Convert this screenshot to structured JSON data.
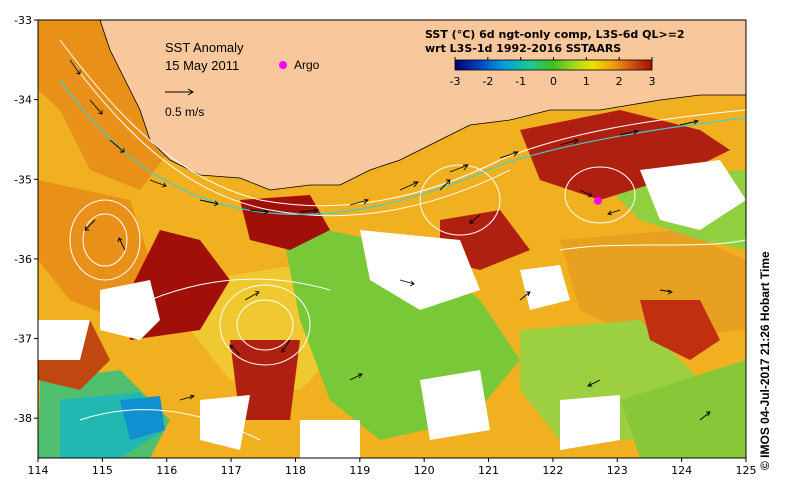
{
  "title": "SST Anomaly",
  "date": "15 May 2011",
  "argo_label": "Argo",
  "scale_label": "0.5 m/s",
  "caption_line1": "SST (°C) 6d ngt-only comp, L3S-6d QL>=2",
  "caption_line2": "wrt L3S-1d 1992-2016 SSTAARS",
  "credit": "© IMOS 04-Jul-2017 21:26 Hobart Time",
  "colors": {
    "land": "#f8c89c",
    "no_data": "#ffffff",
    "argo_marker": "#ff00ff",
    "contour": "#ffffff",
    "current_path": "#40d0d0"
  },
  "colorbar": {
    "min": -3,
    "max": 3,
    "ticks": [
      "-3",
      "-2",
      "-1",
      "0",
      "1",
      "2",
      "3"
    ]
  },
  "axes": {
    "x_ticks": [
      "114",
      "115",
      "116",
      "117",
      "118",
      "119",
      "120",
      "121",
      "122",
      "123",
      "124",
      "125"
    ],
    "y_ticks": [
      "-33",
      "-34",
      "-35",
      "-36",
      "-37",
      "-38"
    ],
    "lon_range": [
      114,
      125
    ],
    "lat_range": [
      -38.5,
      -33
    ]
  },
  "argo_float": {
    "lon": 122.7,
    "lat": -35.27
  }
}
